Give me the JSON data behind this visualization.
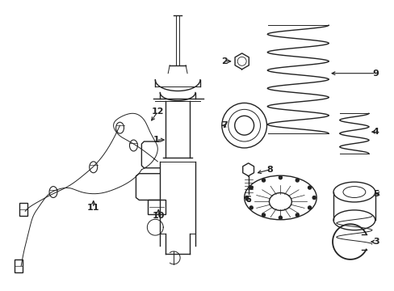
{
  "bg_color": "#ffffff",
  "fig_width": 4.89,
  "fig_height": 3.6,
  "dpi": 100,
  "line_color": "#222222",
  "lw": 1.0,
  "lw_thin": 0.7
}
